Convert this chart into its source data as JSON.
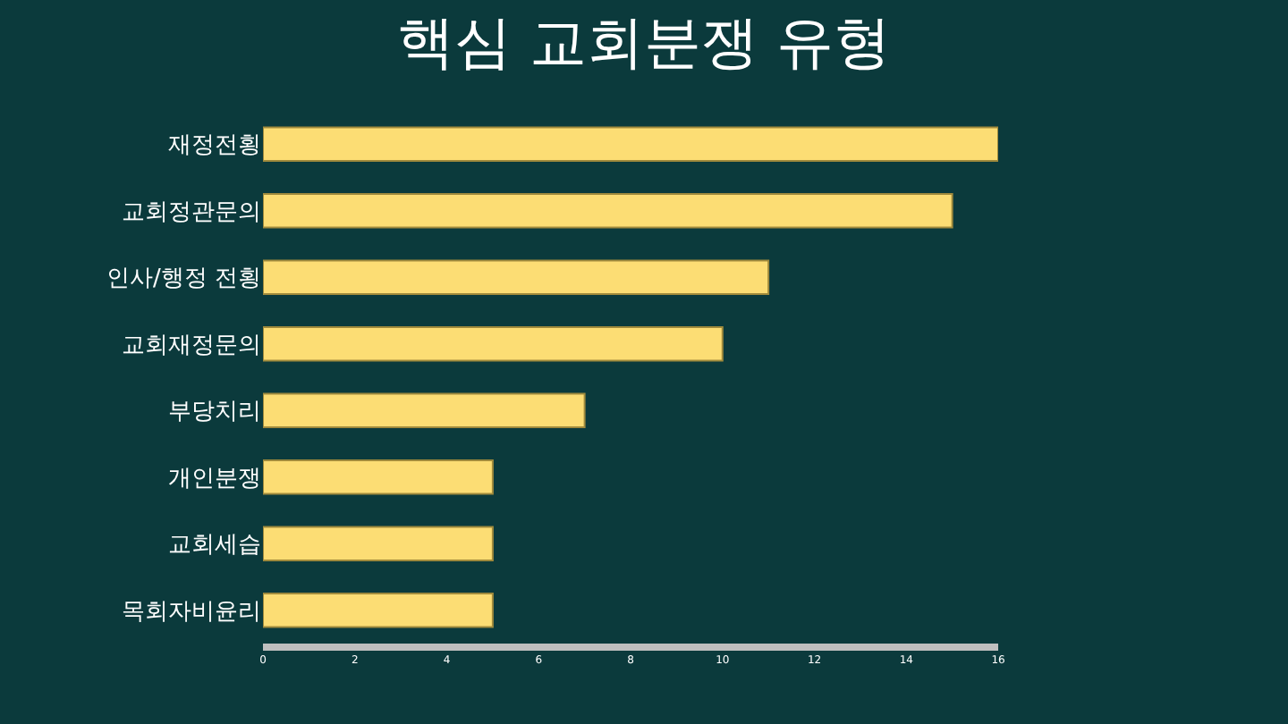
{
  "chart_data": {
    "type": "bar",
    "title": "핵심 교회분쟁 유형",
    "orientation": "horizontal",
    "categories": [
      "재정전횡",
      "교회정관문의",
      "인사/행정 전횡",
      "교회재정문의",
      "부당치리",
      "개인분쟁",
      "교회세습",
      "목회자비윤리"
    ],
    "values": [
      16,
      15,
      11,
      10,
      7,
      5,
      5,
      5
    ],
    "color": "#fcdd74",
    "xlim": [
      0,
      16
    ],
    "xticks": [
      0,
      2,
      4,
      6,
      8,
      10,
      12,
      14,
      16
    ],
    "grid": false
  }
}
